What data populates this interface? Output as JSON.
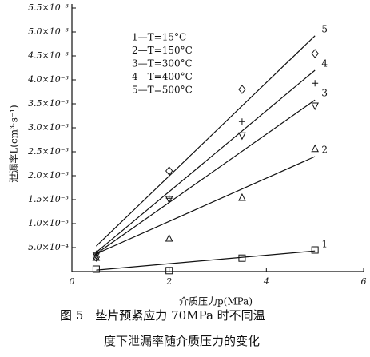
{
  "chart_data": {
    "type": "scatter",
    "x_label": "介质压力p(MPa)",
    "y_label": "泄漏率L(cm³·s⁻¹)",
    "caption": [
      "图 5　垫片预紧应力 70MPa 时不同温",
      "度下泄漏率随介质压力的变化"
    ],
    "xlim": [
      0,
      6
    ],
    "xticks": [
      0,
      2,
      4,
      6
    ],
    "ylim": [
      0,
      0.0055
    ],
    "yticks": [
      {
        "value": 0.0005,
        "label": "5.0×10⁻⁴"
      },
      {
        "value": 0.001,
        "label": "1.0×10⁻³"
      },
      {
        "value": 0.0015,
        "label": "1.5×10⁻³"
      },
      {
        "value": 0.002,
        "label": "2.0×10⁻³"
      },
      {
        "value": 0.0025,
        "label": "2.5×10⁻³"
      },
      {
        "value": 0.003,
        "label": "3.0×10⁻³"
      },
      {
        "value": 0.0035,
        "label": "3.5×10⁻³"
      },
      {
        "value": 0.004,
        "label": "4.0×10⁻³"
      },
      {
        "value": 0.0045,
        "label": "4.5×10⁻³"
      },
      {
        "value": 0.005,
        "label": "5.0×10⁻³"
      },
      {
        "value": 0.0055,
        "label": "5.5×10⁻³"
      }
    ],
    "series": [
      {
        "name": "1—T=15°C",
        "label": "1",
        "color": "#111111",
        "marker": "square",
        "x": [
          0.5,
          2,
          3.5,
          5
        ],
        "values": [
          5e-05,
          2e-05,
          0.00028,
          0.00045
        ],
        "fit_x": [
          0.5,
          5
        ],
        "fit_y": [
          3e-05,
          0.00043
        ]
      },
      {
        "name": "2—T=150°C",
        "label": "2",
        "color": "#111111",
        "marker": "triangle",
        "x": [
          0.5,
          2,
          3.5,
          5
        ],
        "values": [
          0.0003,
          0.0007,
          0.00155,
          0.00257
        ],
        "fit_x": [
          0.5,
          5
        ],
        "fit_y": [
          0.00037,
          0.0024
        ]
      },
      {
        "name": "3—T=300°C",
        "label": "3",
        "color": "#111111",
        "marker": "triangle-down",
        "x": [
          0.5,
          2,
          3.5,
          5
        ],
        "values": [
          0.00033,
          0.0015,
          0.00283,
          0.00345
        ],
        "fit_x": [
          0.5,
          5
        ],
        "fit_y": [
          0.00037,
          0.00358
        ]
      },
      {
        "name": "4—T=400°C",
        "label": "4",
        "color": "#111111",
        "marker": "plus",
        "x": [
          0.5,
          2,
          3.5,
          5
        ],
        "values": [
          0.00037,
          0.00153,
          0.00313,
          0.00393
        ],
        "fit_x": [
          0.5,
          5
        ],
        "fit_y": [
          0.0004,
          0.0042
        ]
      },
      {
        "name": "5—T=500°C",
        "label": "5",
        "color": "#111111",
        "marker": "diamond",
        "x": [
          0.5,
          2,
          3.5,
          5
        ],
        "values": [
          0.0003,
          0.0021,
          0.0038,
          0.00455
        ],
        "fit_x": [
          0.5,
          5
        ],
        "fit_y": [
          0.00053,
          0.00492
        ]
      }
    ]
  }
}
